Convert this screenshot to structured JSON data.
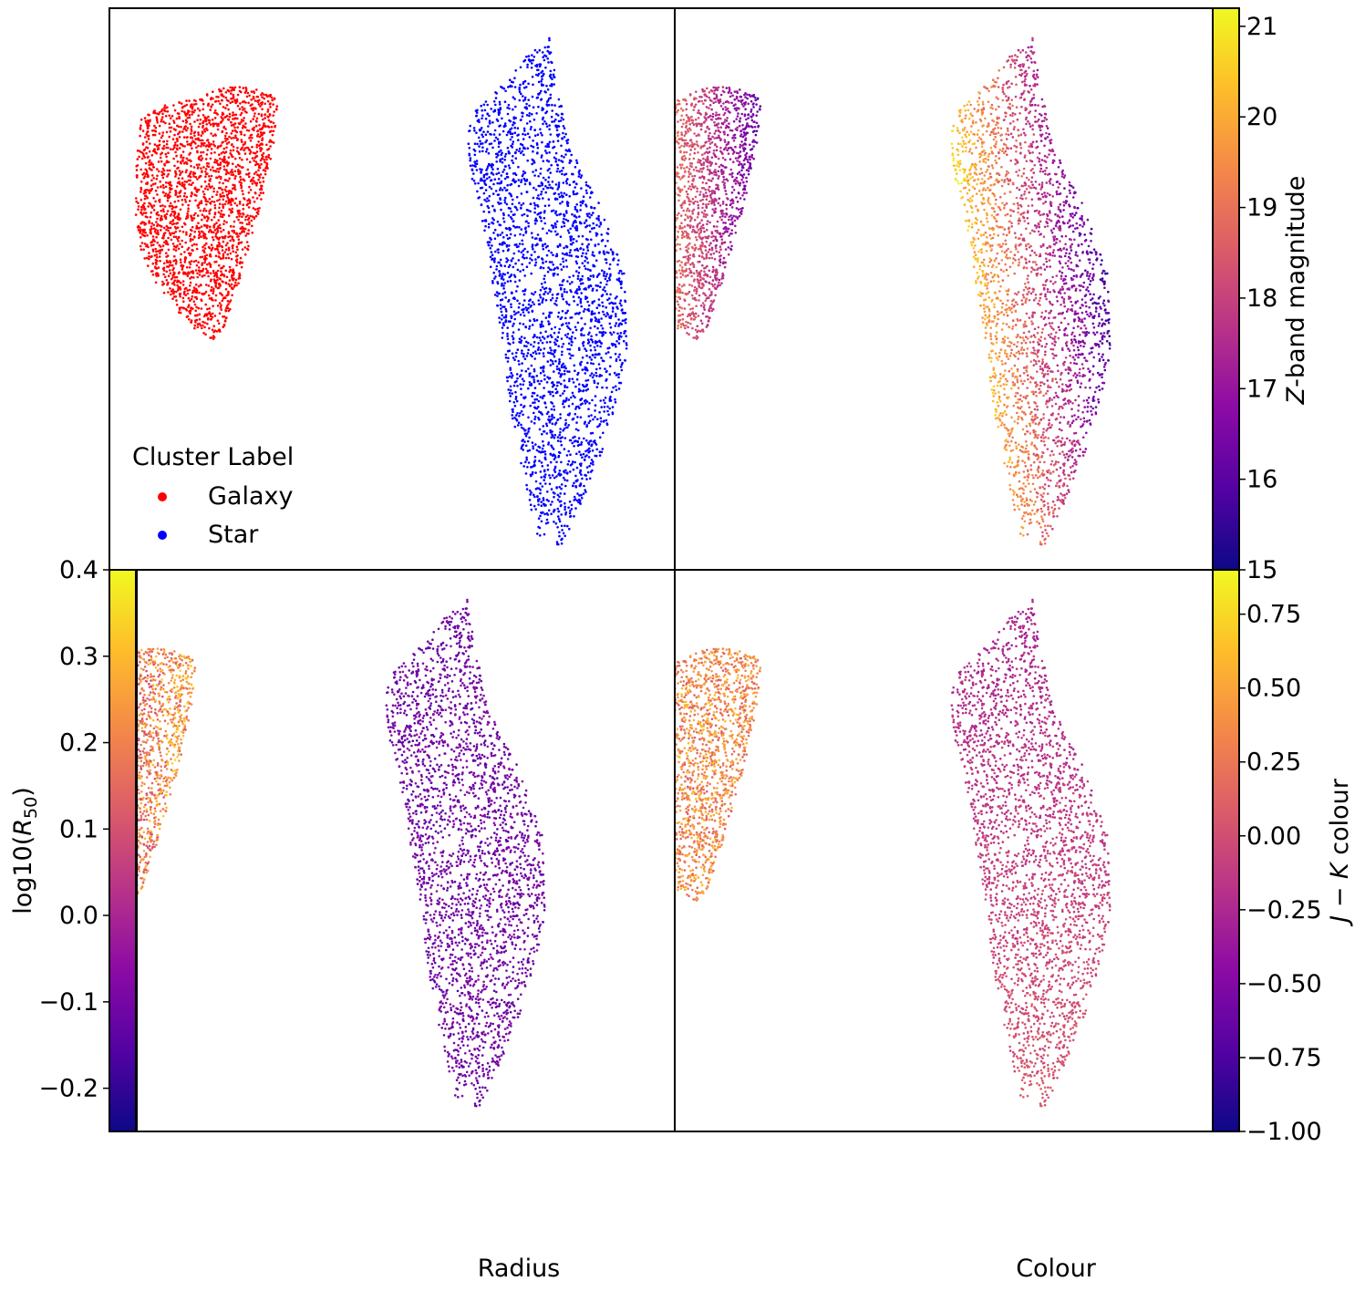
{
  "figure": {
    "panel_labels": {
      "radius": "Radius",
      "colour": "Colour"
    },
    "colormap_name": "plasma",
    "colormap_stops": [
      "#0d0887",
      "#5302a3",
      "#8b0aa5",
      "#b83289",
      "#db5c68",
      "#f48849",
      "#febd2a",
      "#f0f921"
    ]
  },
  "chart_data": [
    {
      "id": "top-left",
      "type": "scatter",
      "title": "",
      "coloring": "categorical",
      "legend": {
        "title": "Cluster Label",
        "position": "lower-left",
        "entries": [
          {
            "label": "Galaxy",
            "color": "#ff0000"
          },
          {
            "label": "Star",
            "color": "#0000ff"
          }
        ]
      },
      "clusters": [
        {
          "name": "Galaxy",
          "color": "#ff0000"
        },
        {
          "name": "Star",
          "color": "#0000ff"
        }
      ],
      "axes_ticks": "none"
    },
    {
      "id": "top-right",
      "type": "scatter",
      "title": "",
      "coloring": "continuous",
      "colorbar": {
        "label": "Z-band magnitude",
        "label_italic_prefix": "Z",
        "label_rest": "-band magnitude",
        "range": [
          15,
          21.2
        ],
        "ticks": [
          "15",
          "16",
          "17",
          "18",
          "19",
          "20",
          "21"
        ],
        "tick_values": [
          15,
          16,
          17,
          18,
          19,
          20,
          21
        ],
        "position": "right"
      }
    },
    {
      "id": "bottom-left",
      "type": "scatter",
      "title": "",
      "coloring": "continuous",
      "xlabel": "",
      "ylabel_prefix": "log10(",
      "ylabel_var": "R",
      "ylabel_sub": "50",
      "ylabel_suffix": ")",
      "colorbar": {
        "label": "log10(R50)",
        "range": [
          -0.25,
          0.4
        ],
        "ticks": [
          "0.4",
          "0.3",
          "0.2",
          "0.1",
          "0.0",
          "−0.1",
          "−0.2"
        ],
        "tick_values": [
          0.4,
          0.3,
          0.2,
          0.1,
          0.0,
          -0.1,
          -0.2
        ],
        "position": "left"
      }
    },
    {
      "id": "bottom-right",
      "type": "scatter",
      "title": "",
      "coloring": "continuous",
      "colorbar": {
        "label_italic_a": "J",
        "label_mid": " − ",
        "label_italic_b": "K",
        "label_rest": " colour",
        "range": [
          -1.0,
          0.9
        ],
        "ticks": [
          "0.75",
          "0.50",
          "0.25",
          "0.00",
          "−0.25",
          "−0.50",
          "−0.75",
          "−1.00"
        ],
        "tick_values": [
          0.75,
          0.5,
          0.25,
          0.0,
          -0.25,
          -0.5,
          -0.75,
          -1.0
        ],
        "position": "right"
      }
    }
  ]
}
